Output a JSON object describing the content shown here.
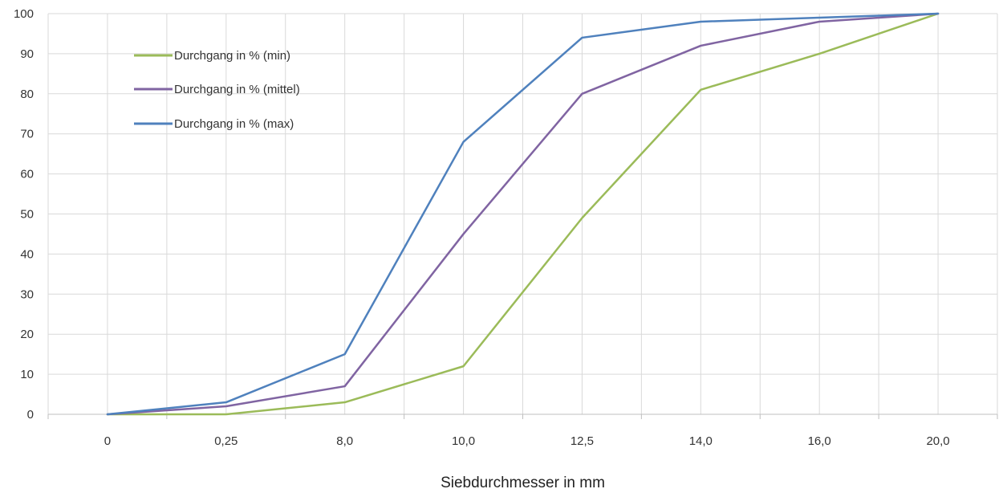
{
  "chart_data": {
    "type": "line",
    "title": "",
    "xlabel": "Siebdurchmesser in mm",
    "ylabel": "",
    "categories": [
      "0",
      "0,25",
      "8,0",
      "10,0",
      "12,5",
      "14,0",
      "16,0",
      "20,0"
    ],
    "ylim": [
      0,
      100
    ],
    "yticks": [
      "0",
      "10",
      "20",
      "30",
      "40",
      "50",
      "60",
      "70",
      "80",
      "90",
      "100"
    ],
    "grid": true,
    "legend_position": "top-left",
    "series": [
      {
        "name": "Durchgang in % (min)",
        "color": "#9bbb59",
        "values": [
          0,
          0,
          3,
          12,
          49,
          81,
          90,
          100
        ]
      },
      {
        "name": "Durchgang in % (mittel)",
        "color": "#8064a2",
        "values": [
          0,
          2,
          7,
          45,
          80,
          92,
          98,
          100
        ]
      },
      {
        "name": "Durchgang in % (max)",
        "color": "#4f81bd",
        "values": [
          0,
          3,
          15,
          68,
          94,
          98,
          99,
          100
        ]
      }
    ]
  }
}
